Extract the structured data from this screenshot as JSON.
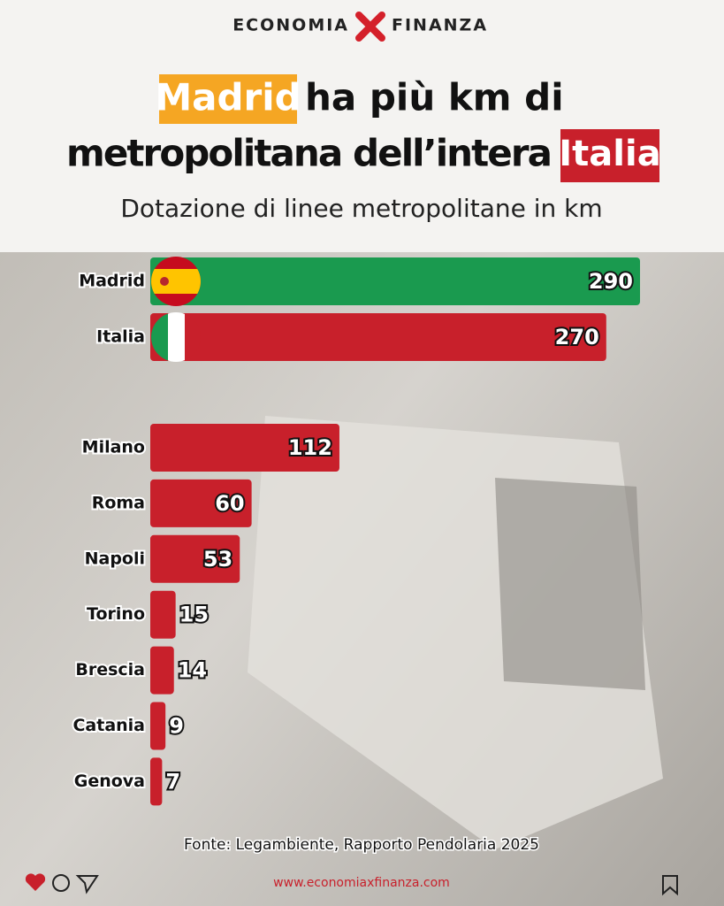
{
  "brand": {
    "left": "ECONOMIA",
    "right": "FINANZA"
  },
  "chart_data": {
    "type": "bar",
    "orientation": "horizontal",
    "title": [
      "Madrid",
      "ha più km di",
      "metropolitana dell’intera",
      "Italia"
    ],
    "subtitle": "Dotazione di linee metropolitane in km",
    "categories": [
      "Madrid",
      "Italia",
      "Milano",
      "Roma",
      "Napoli",
      "Torino",
      "Brescia",
      "Catania",
      "Genova"
    ],
    "values": [
      290,
      270,
      112,
      60,
      53,
      15,
      14,
      9,
      7
    ],
    "colors": [
      "#1a9a4f",
      "#c8202b",
      "#c8202b",
      "#c8202b",
      "#c8202b",
      "#c8202b",
      "#c8202b",
      "#c8202b",
      "#c8202b"
    ]
  },
  "source": "Fonte: Legambiente, Rapporto Pendolaria 2025",
  "url": "www.economiaxfinanza.com"
}
